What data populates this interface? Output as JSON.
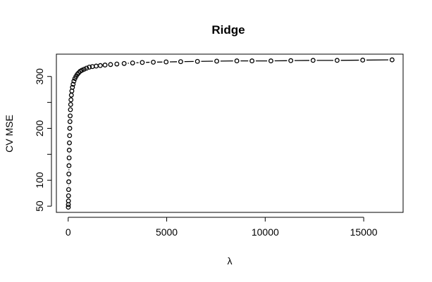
{
  "chart_data": {
    "type": "scatter",
    "title": "Ridge",
    "xlabel": "λ",
    "ylabel": "CV MSE",
    "xlim": [
      -600,
      17000
    ],
    "ylim": [
      38,
      343
    ],
    "xticks": [
      0,
      5000,
      10000,
      15000
    ],
    "xtick_labels": [
      "0",
      "5000",
      "10000",
      "15000"
    ],
    "yticks": [
      50,
      100,
      150,
      200,
      250,
      300
    ],
    "ytick_labels": [
      "50",
      "100",
      "",
      "200",
      "",
      "300"
    ],
    "grid": false,
    "legend": "none",
    "style": "points connected by dashed segments",
    "x": [
      5,
      8,
      12,
      17,
      22,
      28,
      34,
      40,
      47,
      54,
      62,
      71,
      80,
      90,
      100,
      112,
      125,
      140,
      160,
      185,
      215,
      250,
      290,
      340,
      395,
      460,
      530,
      610,
      700,
      810,
      930,
      1070,
      1230,
      1420,
      1630,
      1870,
      2150,
      2470,
      2840,
      3270,
      3760,
      4320,
      4970,
      5710,
      6560,
      7540,
      8560,
      9330,
      10290,
      11300,
      12430,
      13650,
      14950,
      16440
    ],
    "y": [
      48,
      53,
      60,
      70,
      82,
      97,
      112,
      128,
      143,
      158,
      172,
      186,
      200,
      213,
      224,
      236,
      246,
      255,
      264,
      272,
      279,
      285,
      291,
      296,
      300,
      304,
      307,
      310,
      312,
      314,
      316,
      318,
      319,
      320,
      321,
      322,
      323,
      324,
      325,
      326,
      327,
      327.5,
      328,
      328.5,
      329,
      329.5,
      330,
      330,
      330,
      330.5,
      331,
      331,
      331.5,
      332
    ]
  }
}
